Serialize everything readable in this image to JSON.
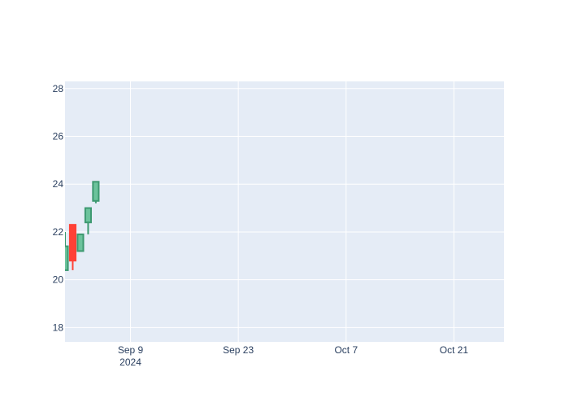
{
  "chart_data": {
    "type": "candlestick",
    "title": "",
    "xlabel": "",
    "ylabel": "",
    "grid": true,
    "legend": "none",
    "colors": {
      "plot_bg": "#e5ecf6",
      "grid": "#ffffff",
      "increasing": "#3d9970",
      "increasing_fill": "#6cc39c",
      "decreasing": "#ff4136",
      "decreasing_fill": "#ff4136",
      "tick_text": "#2a3f5f"
    },
    "xlim": [
      "2024-08-31T12:00",
      "2024-10-27T12:00"
    ],
    "ylim": [
      17.4,
      28.3
    ],
    "x_ticks": [
      {
        "date": "2024-09-09",
        "label": "Sep 9",
        "sublabel": "2024"
      },
      {
        "date": "2024-09-23",
        "label": "Sep 23"
      },
      {
        "date": "2024-10-07",
        "label": "Oct 7"
      },
      {
        "date": "2024-10-21",
        "label": "Oct 21"
      }
    ],
    "y_ticks": [
      18,
      20,
      22,
      24,
      26,
      28
    ],
    "candles": [
      {
        "date": "2024-08-31T12:00",
        "open": 20.4,
        "high": 22.0,
        "low": 20.4,
        "close": 21.4
      },
      {
        "date": "2024-09-01T12:00",
        "open": 22.3,
        "high": 22.3,
        "low": 20.4,
        "close": 20.8
      },
      {
        "date": "2024-09-02T12:00",
        "open": 21.2,
        "high": 21.9,
        "low": 21.2,
        "close": 21.9
      },
      {
        "date": "2024-09-03T12:00",
        "open": 22.4,
        "high": 23.0,
        "low": 21.9,
        "close": 23.0
      },
      {
        "date": "2024-09-04T12:00",
        "open": 23.3,
        "high": 24.1,
        "low": 23.2,
        "close": 24.1
      }
    ]
  }
}
